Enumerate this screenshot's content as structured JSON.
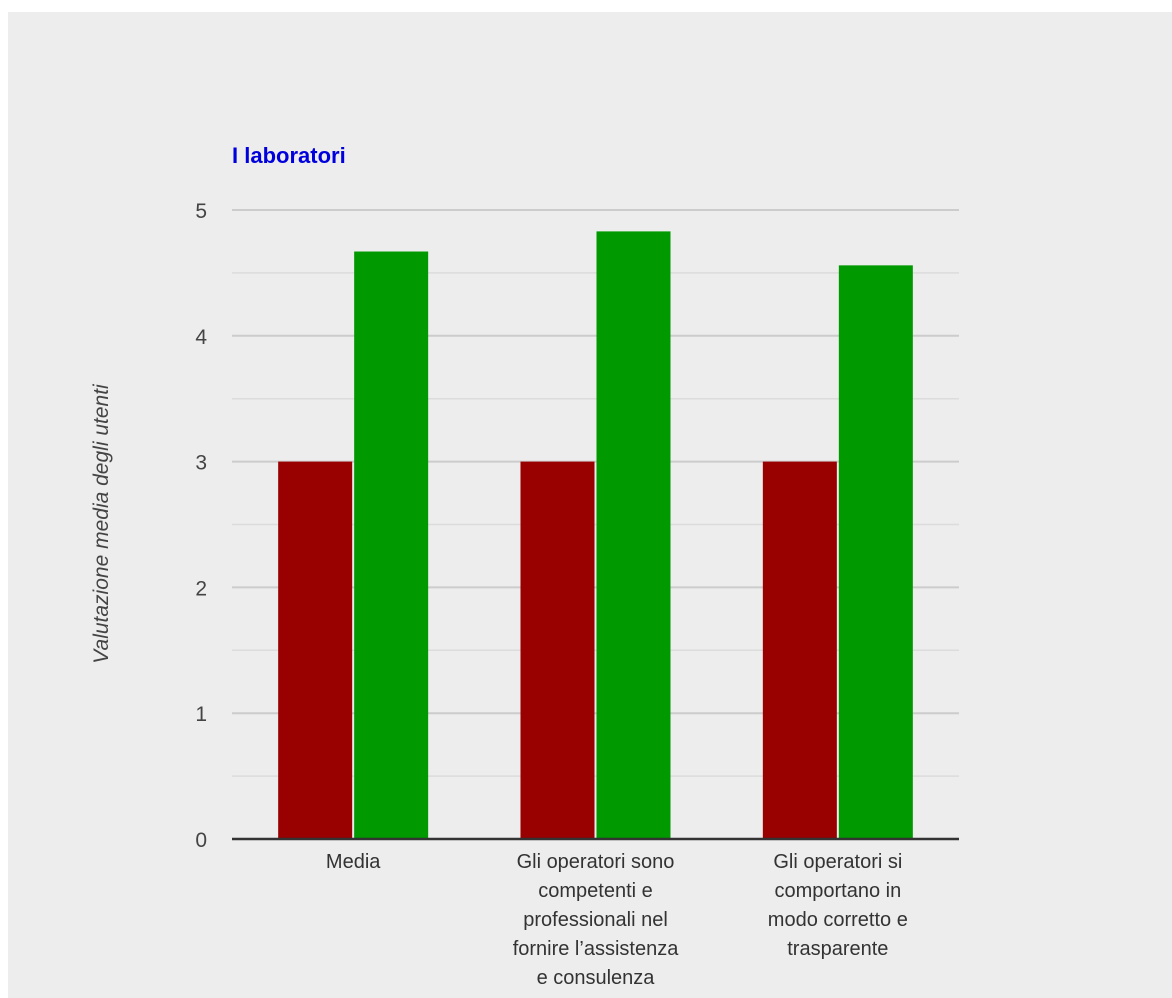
{
  "chart_data": {
    "type": "bar",
    "title": "I laboratori",
    "ylabel": "Valutazione media degli utenti",
    "xlabel": "",
    "ylim": [
      0,
      5
    ],
    "yticks": [
      0,
      1,
      2,
      3,
      4,
      5
    ],
    "minor_grid": true,
    "legend": "none",
    "categories": [
      "Media",
      "Gli operatori sono competenti e professionali nel fornire l’assistenza e consulenza",
      "Gli operatori si comportano in modo corretto e trasparente"
    ],
    "category_lines": [
      [
        "Media"
      ],
      [
        "Gli operatori sono",
        "competenti e",
        "professionali nel",
        "fornire l’assistenza",
        "e consulenza"
      ],
      [
        "Gli operatori si",
        "comportano in",
        "modo corretto e",
        "trasparente"
      ]
    ],
    "series": [
      {
        "values": [
          3.0,
          3.0,
          3.0
        ],
        "color": "#990000"
      },
      {
        "values": [
          4.67,
          4.83,
          4.56
        ],
        "color": "#009900"
      }
    ],
    "colors": {
      "title": "#0000dd",
      "axis_text": "#444444",
      "grid_major": "#cccccc",
      "grid_minor": "#dcdcdc",
      "baseline": "#333333",
      "background": "#ededed"
    }
  }
}
